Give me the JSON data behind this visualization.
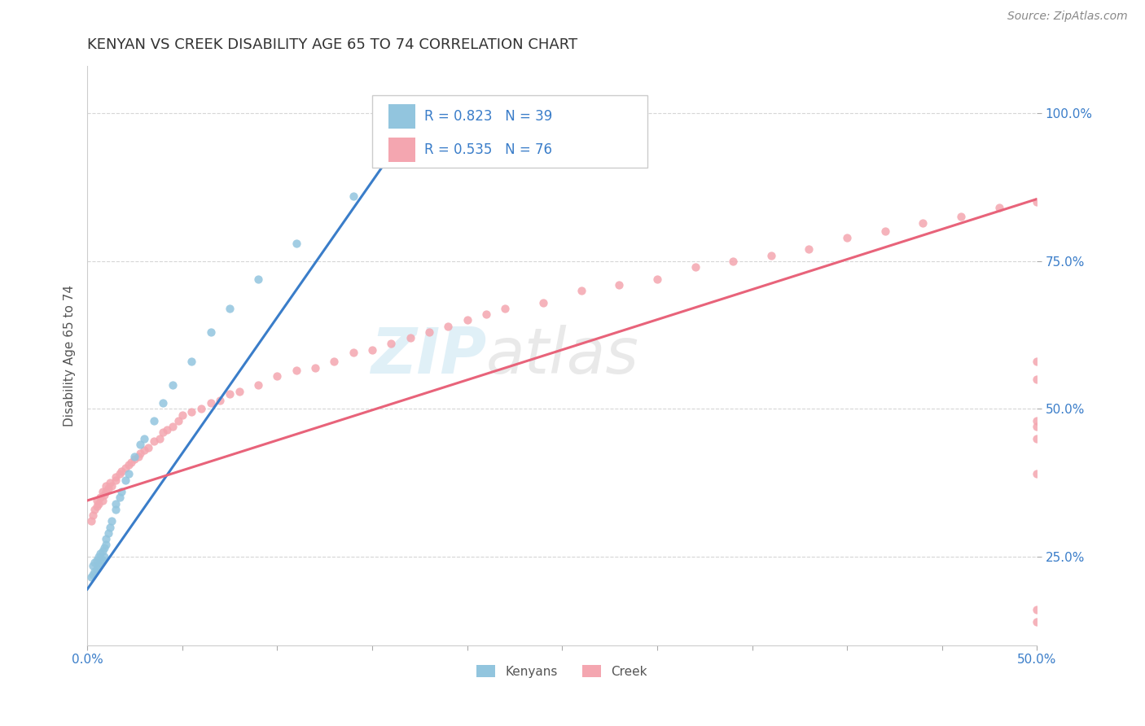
{
  "title": "KENYAN VS CREEK DISABILITY AGE 65 TO 74 CORRELATION CHART",
  "source": "Source: ZipAtlas.com",
  "ylabel": "Disability Age 65 to 74",
  "xmin": 0.0,
  "xmax": 0.5,
  "ymin": 0.1,
  "ymax": 1.08,
  "ytick_positions": [
    0.25,
    0.5,
    0.75,
    1.0
  ],
  "kenyan_color": "#92C5DE",
  "creek_color": "#F4A6B0",
  "kenyan_line_color": "#3A7DC9",
  "creek_line_color": "#E8637A",
  "kenyan_x": [
    0.002,
    0.003,
    0.003,
    0.004,
    0.004,
    0.005,
    0.005,
    0.006,
    0.006,
    0.007,
    0.007,
    0.008,
    0.008,
    0.009,
    0.009,
    0.01,
    0.01,
    0.011,
    0.012,
    0.013,
    0.015,
    0.015,
    0.017,
    0.018,
    0.02,
    0.022,
    0.025,
    0.028,
    0.03,
    0.035,
    0.04,
    0.045,
    0.055,
    0.065,
    0.075,
    0.09,
    0.11,
    0.14,
    0.17
  ],
  "kenyan_y": [
    0.215,
    0.22,
    0.235,
    0.225,
    0.24,
    0.23,
    0.245,
    0.235,
    0.25,
    0.24,
    0.255,
    0.245,
    0.26,
    0.25,
    0.265,
    0.27,
    0.28,
    0.29,
    0.3,
    0.31,
    0.33,
    0.34,
    0.35,
    0.36,
    0.38,
    0.39,
    0.42,
    0.44,
    0.45,
    0.48,
    0.51,
    0.54,
    0.58,
    0.63,
    0.67,
    0.72,
    0.78,
    0.86,
    0.92
  ],
  "creek_x": [
    0.002,
    0.003,
    0.004,
    0.005,
    0.005,
    0.006,
    0.007,
    0.008,
    0.008,
    0.009,
    0.01,
    0.01,
    0.011,
    0.012,
    0.013,
    0.015,
    0.015,
    0.017,
    0.018,
    0.02,
    0.022,
    0.023,
    0.025,
    0.027,
    0.028,
    0.03,
    0.032,
    0.035,
    0.038,
    0.04,
    0.042,
    0.045,
    0.048,
    0.05,
    0.055,
    0.06,
    0.065,
    0.07,
    0.075,
    0.08,
    0.09,
    0.1,
    0.11,
    0.12,
    0.13,
    0.14,
    0.15,
    0.16,
    0.17,
    0.18,
    0.19,
    0.2,
    0.21,
    0.22,
    0.24,
    0.26,
    0.28,
    0.3,
    0.32,
    0.34,
    0.36,
    0.38,
    0.4,
    0.42,
    0.44,
    0.46,
    0.48,
    0.5,
    0.5,
    0.5,
    0.5,
    0.5,
    0.5,
    0.5,
    0.5,
    0.5
  ],
  "creek_y": [
    0.31,
    0.32,
    0.33,
    0.335,
    0.345,
    0.34,
    0.35,
    0.345,
    0.36,
    0.355,
    0.36,
    0.37,
    0.365,
    0.375,
    0.37,
    0.38,
    0.385,
    0.39,
    0.395,
    0.4,
    0.405,
    0.41,
    0.415,
    0.42,
    0.425,
    0.43,
    0.435,
    0.445,
    0.45,
    0.46,
    0.465,
    0.47,
    0.48,
    0.49,
    0.495,
    0.5,
    0.51,
    0.515,
    0.525,
    0.53,
    0.54,
    0.555,
    0.565,
    0.57,
    0.58,
    0.595,
    0.6,
    0.61,
    0.62,
    0.63,
    0.64,
    0.65,
    0.66,
    0.67,
    0.68,
    0.7,
    0.71,
    0.72,
    0.74,
    0.75,
    0.76,
    0.77,
    0.79,
    0.8,
    0.815,
    0.825,
    0.84,
    0.85,
    0.58,
    0.45,
    0.39,
    0.55,
    0.47,
    0.16,
    0.14,
    0.48
  ],
  "kenyan_line_x0": 0.0,
  "kenyan_line_y0": 0.195,
  "kenyan_line_x1": 0.175,
  "kenyan_line_y1": 1.0,
  "creek_line_x0": 0.0,
  "creek_line_y0": 0.345,
  "creek_line_x1": 0.5,
  "creek_line_y1": 0.855
}
